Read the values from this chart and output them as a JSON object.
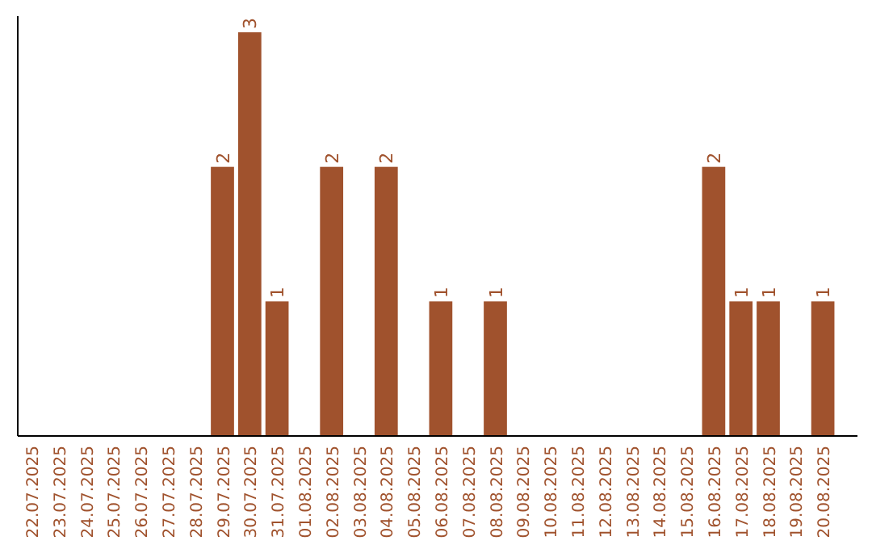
{
  "chart_data": {
    "type": "bar",
    "categories": [
      "22.07.2025",
      "23.07.2025",
      "24.07.2025",
      "25.07.2025",
      "26.07.2025",
      "27.07.2025",
      "28.07.2025",
      "29.07.2025",
      "30.07.2025",
      "31.07.2025",
      "01.08.2025",
      "02.08.2025",
      "03.08.2025",
      "04.08.2025",
      "05.08.2025",
      "06.08.2025",
      "07.08.2025",
      "08.08.2025",
      "09.08.2025",
      "10.08.2025",
      "11.08.2025",
      "12.08.2025",
      "13.08.2025",
      "14.08.2025",
      "15.08.2025",
      "16.08.2025",
      "17.08.2025",
      "18.08.2025",
      "19.08.2025",
      "20.08.2025"
    ],
    "values": [
      0,
      0,
      0,
      0,
      0,
      0,
      0,
      2,
      3,
      1,
      0,
      2,
      0,
      2,
      0,
      1,
      0,
      1,
      0,
      0,
      0,
      0,
      0,
      0,
      0,
      2,
      1,
      1,
      0,
      1
    ],
    "value_labels": [
      null,
      null,
      null,
      null,
      null,
      null,
      null,
      "2",
      "3",
      "1",
      null,
      "2",
      null,
      "2",
      null,
      "1",
      null,
      "1",
      null,
      null,
      null,
      null,
      null,
      null,
      null,
      "2",
      "1",
      "1",
      null,
      "1"
    ],
    "color": "#a0522d"
  }
}
